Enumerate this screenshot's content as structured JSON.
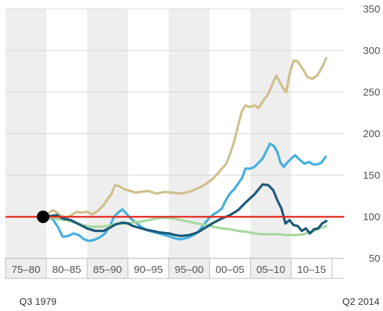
{
  "chart_data": {
    "type": "line",
    "title": "",
    "xlabel": "",
    "ylabel": "",
    "ylim": [
      50,
      350
    ],
    "yticks": [
      50,
      100,
      150,
      200,
      250,
      300,
      350
    ],
    "xlim": [
      1975,
      2016.5
    ],
    "periods": [
      "75–80",
      "80–85",
      "85–90",
      "90–95",
      "95–00",
      "00–05",
      "05–10",
      "10–15"
    ],
    "grid": "horizontal",
    "start_label": "Q3 1979",
    "end_label": "Q2 2014",
    "reference_line": {
      "value": 100,
      "color": "#e32b1f"
    },
    "base_point": {
      "x": 1979.6,
      "y": 100
    },
    "colors": {
      "band": "#eeeeee",
      "axis": "#bbbbbb"
    },
    "series": [
      {
        "color": "#cfc08e",
        "points": [
          [
            1979.6,
            100
          ],
          [
            1980.2,
            104
          ],
          [
            1980.8,
            108
          ],
          [
            1981.3,
            105
          ],
          [
            1981.8,
            101
          ],
          [
            1982.5,
            99
          ],
          [
            1983.1,
            102
          ],
          [
            1983.7,
            106
          ],
          [
            1984.3,
            105
          ],
          [
            1985,
            106
          ],
          [
            1985.6,
            103
          ],
          [
            1986.3,
            107
          ],
          [
            1987,
            114
          ],
          [
            1987.5,
            121
          ],
          [
            1988,
            128
          ],
          [
            1988.4,
            138
          ],
          [
            1988.9,
            137
          ],
          [
            1989.6,
            133
          ],
          [
            1990.3,
            131
          ],
          [
            1991,
            129
          ],
          [
            1991.6,
            130
          ],
          [
            1992.5,
            131
          ],
          [
            1993.5,
            128
          ],
          [
            1994.5,
            130
          ],
          [
            1995.5,
            129
          ],
          [
            1996.5,
            128
          ],
          [
            1997.5,
            130
          ],
          [
            1998.5,
            134
          ],
          [
            1999.5,
            139
          ],
          [
            2000.3,
            145
          ],
          [
            2001,
            152
          ],
          [
            2001.5,
            158
          ],
          [
            2002,
            163
          ],
          [
            2002.5,
            175
          ],
          [
            2003,
            190
          ],
          [
            2003.5,
            210
          ],
          [
            2004,
            228
          ],
          [
            2004.4,
            234
          ],
          [
            2004.9,
            232
          ],
          [
            2005.5,
            234
          ],
          [
            2006,
            231
          ],
          [
            2006.6,
            240
          ],
          [
            2007.2,
            248
          ],
          [
            2007.8,
            262
          ],
          [
            2008.2,
            270
          ],
          [
            2008.6,
            262
          ],
          [
            2009,
            255
          ],
          [
            2009.4,
            250
          ],
          [
            2009.8,
            272
          ],
          [
            2010.3,
            288
          ],
          [
            2010.8,
            287
          ],
          [
            2011.4,
            278
          ],
          [
            2012,
            268
          ],
          [
            2012.6,
            266
          ],
          [
            2013.2,
            270
          ],
          [
            2013.8,
            280
          ],
          [
            2014.3,
            291
          ]
        ]
      },
      {
        "color": "#45b0e1",
        "points": [
          [
            1979.6,
            100
          ],
          [
            1980.2,
            99
          ],
          [
            1980.8,
            97
          ],
          [
            1981.4,
            88
          ],
          [
            1982,
            76
          ],
          [
            1982.7,
            77
          ],
          [
            1983.3,
            80
          ],
          [
            1984,
            78
          ],
          [
            1984.6,
            73
          ],
          [
            1985.2,
            71
          ],
          [
            1985.8,
            72
          ],
          [
            1986.5,
            75
          ],
          [
            1987.2,
            80
          ],
          [
            1987.8,
            89
          ],
          [
            1988.3,
            100
          ],
          [
            1988.8,
            105
          ],
          [
            1989.3,
            109
          ],
          [
            1989.8,
            104
          ],
          [
            1990.3,
            98
          ],
          [
            1991,
            93
          ],
          [
            1991.6,
            88
          ],
          [
            1992.3,
            84
          ],
          [
            1993,
            82
          ],
          [
            1993.8,
            80
          ],
          [
            1994.5,
            78
          ],
          [
            1995.2,
            76
          ],
          [
            1995.8,
            74
          ],
          [
            1996.4,
            73
          ],
          [
            1997,
            74
          ],
          [
            1997.6,
            76
          ],
          [
            1998.2,
            79
          ],
          [
            1998.8,
            84
          ],
          [
            1999.4,
            92
          ],
          [
            2000,
            99
          ],
          [
            2000.5,
            103
          ],
          [
            2001,
            106
          ],
          [
            2001.5,
            110
          ],
          [
            2002,
            120
          ],
          [
            2002.5,
            128
          ],
          [
            2003,
            133
          ],
          [
            2003.5,
            140
          ],
          [
            2004,
            147
          ],
          [
            2004.4,
            158
          ],
          [
            2005,
            158
          ],
          [
            2005.5,
            160
          ],
          [
            2006,
            165
          ],
          [
            2006.5,
            170
          ],
          [
            2007,
            180
          ],
          [
            2007.4,
            188
          ],
          [
            2007.9,
            185
          ],
          [
            2008.3,
            178
          ],
          [
            2008.7,
            165
          ],
          [
            2009.1,
            160
          ],
          [
            2009.5,
            165
          ],
          [
            2010,
            170
          ],
          [
            2010.5,
            174
          ],
          [
            2011,
            169
          ],
          [
            2011.6,
            164
          ],
          [
            2012.2,
            166
          ],
          [
            2012.7,
            163
          ],
          [
            2013.2,
            163
          ],
          [
            2013.7,
            165
          ],
          [
            2014.2,
            172
          ]
        ]
      },
      {
        "color": "#a8d8a0",
        "points": [
          [
            1979.6,
            100
          ],
          [
            1980.5,
            99
          ],
          [
            1981.5,
            97
          ],
          [
            1982.5,
            96
          ],
          [
            1983.5,
            93
          ],
          [
            1984.5,
            90
          ],
          [
            1985.5,
            88
          ],
          [
            1986.5,
            88
          ],
          [
            1987.5,
            89
          ],
          [
            1988.5,
            91
          ],
          [
            1989.5,
            92
          ],
          [
            1990.5,
            93
          ],
          [
            1991.5,
            94
          ],
          [
            1992.5,
            96
          ],
          [
            1993.5,
            98
          ],
          [
            1994.5,
            99
          ],
          [
            1995.5,
            98
          ],
          [
            1996.5,
            96
          ],
          [
            1997.5,
            94
          ],
          [
            1998.5,
            92
          ],
          [
            1999.5,
            90
          ],
          [
            2000.5,
            88
          ],
          [
            2001.5,
            86
          ],
          [
            2002.5,
            85
          ],
          [
            2003.5,
            83
          ],
          [
            2004.5,
            82
          ],
          [
            2005.5,
            80
          ],
          [
            2006.5,
            79
          ],
          [
            2007.5,
            79
          ],
          [
            2008.5,
            79
          ],
          [
            2009.5,
            78
          ],
          [
            2010.5,
            78
          ],
          [
            2011.5,
            79
          ],
          [
            2012.5,
            82
          ],
          [
            2013.5,
            86
          ],
          [
            2014.3,
            89
          ]
        ]
      },
      {
        "color": "#1c5b79",
        "points": [
          [
            1979.6,
            100
          ],
          [
            1980.5,
            101
          ],
          [
            1981.3,
            102
          ],
          [
            1982,
            98
          ],
          [
            1983,
            96
          ],
          [
            1984,
            91
          ],
          [
            1985,
            86
          ],
          [
            1986,
            83
          ],
          [
            1987,
            83
          ],
          [
            1987.8,
            87
          ],
          [
            1988.5,
            91
          ],
          [
            1989.3,
            93
          ],
          [
            1990,
            92
          ],
          [
            1990.6,
            89
          ],
          [
            1991.3,
            87
          ],
          [
            1992,
            85
          ],
          [
            1993,
            83
          ],
          [
            1994,
            81
          ],
          [
            1995,
            80
          ],
          [
            1995.8,
            78
          ],
          [
            1996.5,
            77
          ],
          [
            1997.5,
            78
          ],
          [
            1998.5,
            81
          ],
          [
            1999.5,
            87
          ],
          [
            2000.5,
            93
          ],
          [
            2001.5,
            98
          ],
          [
            2002.5,
            102
          ],
          [
            2003.5,
            108
          ],
          [
            2004.5,
            118
          ],
          [
            2005.5,
            127
          ],
          [
            2006,
            133
          ],
          [
            2006.5,
            139
          ],
          [
            2007.2,
            138
          ],
          [
            2007.8,
            132
          ],
          [
            2008.3,
            120
          ],
          [
            2008.8,
            110
          ],
          [
            2009.3,
            92
          ],
          [
            2009.8,
            96
          ],
          [
            2010.3,
            90
          ],
          [
            2010.8,
            89
          ],
          [
            2011.3,
            83
          ],
          [
            2011.8,
            86
          ],
          [
            2012.3,
            80
          ],
          [
            2012.8,
            85
          ],
          [
            2013.3,
            86
          ],
          [
            2013.8,
            92
          ],
          [
            2014.3,
            95
          ]
        ]
      }
    ]
  }
}
